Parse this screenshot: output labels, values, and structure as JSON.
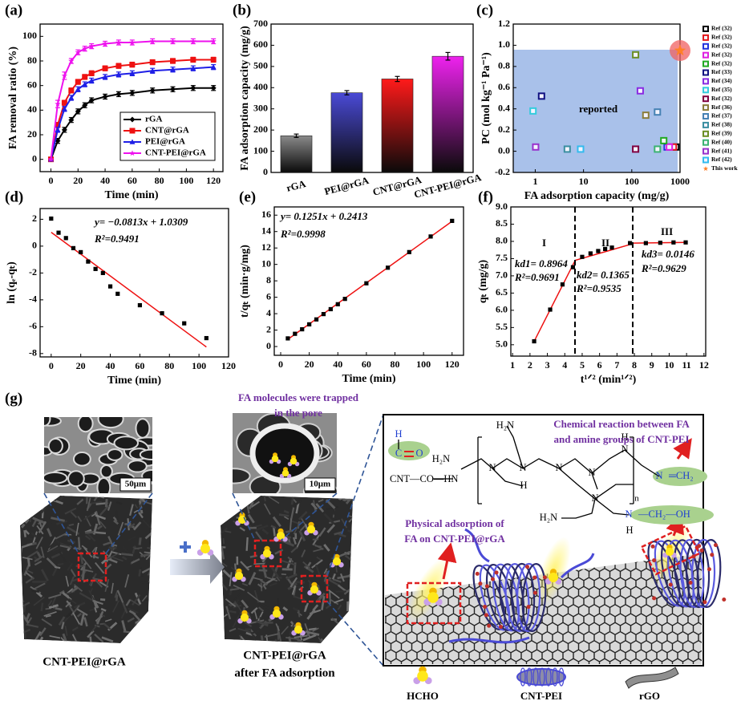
{
  "chart_data": [
    {
      "type": "line",
      "panel_label": "(a)",
      "x_label": "Time (min)",
      "y_label": "FA removal ratio (%)",
      "x": [
        0,
        5,
        10,
        15,
        20,
        25,
        30,
        40,
        50,
        60,
        75,
        90,
        105,
        120
      ],
      "series": [
        {
          "name": "rGA",
          "color": "#000000",
          "marker": "diamond",
          "values": [
            0,
            15,
            24,
            32,
            39,
            44,
            48,
            51,
            53,
            54,
            56,
            57,
            58,
            58
          ],
          "errors": [
            0,
            2,
            2,
            2,
            2,
            2,
            2,
            2,
            2,
            2,
            2,
            2,
            2,
            2
          ]
        },
        {
          "name": "CNT@rGA",
          "color": "#ee1111",
          "marker": "square",
          "values": [
            0,
            28,
            46,
            56,
            63,
            67,
            70,
            74,
            76,
            77,
            79,
            80,
            81,
            81
          ],
          "errors": [
            0,
            2,
            2,
            2,
            2,
            2,
            2,
            2,
            2,
            2,
            2,
            2,
            2,
            2
          ]
        },
        {
          "name": "PEI@rGA",
          "color": "#1f1fe6",
          "marker": "triangle",
          "values": [
            0,
            24,
            41,
            50,
            57,
            61,
            64,
            67,
            69,
            70,
            72,
            73,
            74,
            75
          ],
          "errors": [
            0,
            2,
            2,
            2,
            2,
            2,
            2,
            2,
            2,
            2,
            2,
            2,
            2,
            2
          ]
        },
        {
          "name": "CNT-PEI@rGA",
          "color": "#ee11ee",
          "marker": "star",
          "values": [
            0,
            45,
            68,
            80,
            87,
            90,
            92,
            94,
            95,
            95,
            96,
            96,
            96,
            96
          ],
          "errors": [
            0,
            3,
            3,
            2,
            2,
            2,
            2,
            2,
            2,
            2,
            2,
            2,
            2,
            2
          ]
        }
      ],
      "xlim": [
        -8,
        127
      ],
      "xticks": [
        0,
        20,
        40,
        60,
        80,
        100,
        120
      ],
      "ylim": [
        -10,
        110
      ],
      "yticks": [
        0,
        20,
        40,
        60,
        80,
        100
      ],
      "legend": "lower right"
    },
    {
      "type": "bar",
      "panel_label": "(b)",
      "y_label": "FA adsorption capacity (mg/g)",
      "categories": [
        "rGA",
        "PEI@rGA",
        "CNT@rGA",
        "CNT-PEI@rGA"
      ],
      "values": [
        173,
        376,
        441,
        548
      ],
      "errors": [
        8,
        10,
        12,
        18
      ],
      "colors": [
        "#8a8a8a",
        "#4a4ad6",
        "#ff1a1a",
        "#ee22ee"
      ],
      "ylim": [
        0,
        700
      ],
      "yticks": [
        0,
        100,
        200,
        300,
        400,
        500,
        600,
        700
      ]
    },
    {
      "type": "scatter",
      "panel_label": "(c)",
      "x_label": "FA adsorption capacity (mg/g)",
      "y_label": "PC (mol kg⁻¹ Pa⁻¹)",
      "x_scale": "log",
      "annotations": [
        "reported"
      ],
      "series": [
        {
          "name": "Ref (32)",
          "color": "#000000",
          "marker": "hollow-square",
          "x": [
            820
          ],
          "values": [
            0.04
          ]
        },
        {
          "name": "Ref (32)",
          "color": "#e41a1c",
          "marker": "hollow-square",
          "x": [
            730
          ],
          "values": [
            0.04
          ]
        },
        {
          "name": "Ref (32)",
          "color": "#2233dd",
          "marker": "hollow-square",
          "x": [
            540
          ],
          "values": [
            0.04
          ]
        },
        {
          "name": "Ref (32)",
          "color": "#e020e0",
          "marker": "hollow-square",
          "x": [
            600
          ],
          "values": [
            0.04
          ]
        },
        {
          "name": "Ref (32)",
          "color": "#22aa22",
          "marker": "hollow-square",
          "x": [
            460
          ],
          "values": [
            0.1
          ]
        },
        {
          "name": "Ref (33)",
          "color": "#101080",
          "marker": "hollow-square",
          "x": [
            1.35
          ],
          "values": [
            0.52
          ]
        },
        {
          "name": "Ref (34)",
          "color": "#8a2be2",
          "marker": "hollow-square",
          "x": [
            150
          ],
          "values": [
            0.57
          ]
        },
        {
          "name": "Ref (35)",
          "color": "#33ccdd",
          "marker": "hollow-square",
          "x": [
            0.9
          ],
          "values": [
            0.38
          ]
        },
        {
          "name": "Ref (32)",
          "color": "#800040",
          "marker": "hollow-square",
          "x": [
            120
          ],
          "values": [
            0.02
          ]
        },
        {
          "name": "Ref (36)",
          "color": "#8b7d3a",
          "marker": "hollow-square",
          "x": [
            195
          ],
          "values": [
            0.34
          ]
        },
        {
          "name": "Ref (37)",
          "color": "#4682b4",
          "marker": "hollow-square",
          "x": [
            340
          ],
          "values": [
            0.37
          ]
        },
        {
          "name": "Ref (38)",
          "color": "#3a8fa0",
          "marker": "hollow-square",
          "x": [
            4.6
          ],
          "values": [
            0.02
          ]
        },
        {
          "name": "Ref (39)",
          "color": "#6b8e23",
          "marker": "hollow-square",
          "x": [
            120
          ],
          "values": [
            0.91
          ]
        },
        {
          "name": "Ref (40)",
          "color": "#3cb371",
          "marker": "hollow-square",
          "x": [
            340
          ],
          "values": [
            0.02
          ]
        },
        {
          "name": "Ref (41)",
          "color": "#9932cc",
          "marker": "hollow-square",
          "x": [
            1.02
          ],
          "values": [
            0.04
          ]
        },
        {
          "name": "Ref (42)",
          "color": "#33bbee",
          "marker": "hollow-square",
          "x": [
            8.7
          ],
          "values": [
            0.02
          ]
        },
        {
          "name": "This work",
          "color": "#ff7f27",
          "marker": "star",
          "x": [
            1000
          ],
          "values": [
            0.95
          ]
        }
      ],
      "xlim": [
        0.35,
        1000
      ],
      "xticks": [
        1,
        10,
        100,
        1000
      ],
      "ylim": [
        -0.2,
        1.2
      ],
      "yticks": [
        -0.2,
        {
          "value": 0,
          "label": "0.0"
        },
        0.2,
        0.4,
        0.6,
        0.8,
        {
          "value": 1,
          "label": "1.0"
        },
        1.2
      ],
      "legend": "right"
    },
    {
      "type": "scatter",
      "panel_label": "(d)",
      "x_label": "Time (min)",
      "y_label": "ln (qₑ-qₜ)",
      "annotations": [
        "y= −0.0813x + 1.0309",
        "R²=0.9491"
      ],
      "x": [
        0,
        5,
        10,
        15,
        20,
        25,
        30,
        35,
        40,
        45,
        60,
        75,
        90,
        105
      ],
      "values": [
        2.05,
        1.0,
        0.6,
        -0.15,
        -0.45,
        -1.15,
        -1.7,
        -2.0,
        -3.0,
        -3.55,
        -4.4,
        -5.0,
        -5.75,
        -6.85
      ],
      "fits": [
        {
          "x": [
            0,
            105
          ],
          "y": [
            1.03,
            -7.51
          ]
        }
      ],
      "fit_color": "#ee1111",
      "xlim": [
        -7.5,
        120
      ],
      "xticks": [
        0,
        20,
        40,
        60,
        80,
        100,
        120
      ],
      "ylim": [
        -8.25,
        2.8
      ],
      "yticks": [
        -8,
        -6,
        -4,
        -2,
        0,
        2
      ]
    },
    {
      "type": "scatter",
      "panel_label": "(e)",
      "x_label": "Time (min)",
      "y_label": "t/qₜ (min·g/mg)",
      "annotations": [
        "y= 0.1251x + 0.2413",
        "R²=0.9998"
      ],
      "x": [
        5,
        10,
        15,
        20,
        25,
        30,
        35,
        40,
        45,
        60,
        75,
        90,
        105,
        120
      ],
      "values": [
        0.99,
        1.55,
        2.1,
        2.7,
        3.3,
        3.95,
        4.55,
        5.15,
        5.8,
        7.7,
        9.6,
        11.5,
        13.4,
        15.3
      ],
      "fits": [
        {
          "x": [
            5,
            120
          ],
          "y": [
            0.87,
            15.25
          ]
        }
      ],
      "fit_color": "#ee1111",
      "xlim": [
        -4.5,
        128
      ],
      "xticks": [
        0,
        20,
        40,
        60,
        80,
        100,
        120
      ],
      "ylim": [
        -1.07,
        17
      ],
      "yticks": [
        0,
        2,
        4,
        6,
        8,
        10,
        12,
        14,
        16
      ]
    },
    {
      "type": "scatter",
      "panel_label": "(f)",
      "x_label": "t¹ᐟ² (min¹ᐟ²)",
      "y_label": "qₜ (mg/g)",
      "annotations": [
        "I",
        "II",
        "III",
        "kd1= 0.8964",
        "R²=0.9691",
        "kd2= 0.1365",
        "R²=0.9535",
        "kd3= 0.0146",
        "R²=0.9629"
      ],
      "x": [
        2.24,
        3.16,
        3.87,
        4.47,
        5.0,
        5.48,
        5.92,
        6.32,
        6.71,
        7.75,
        8.66,
        9.49,
        10.25,
        10.95
      ],
      "values": [
        5.1,
        6.02,
        6.75,
        7.25,
        7.55,
        7.65,
        7.72,
        7.78,
        7.82,
        7.95,
        7.95,
        7.96,
        7.97,
        7.97
      ],
      "fits": [
        {
          "x": [
            2.24,
            4.6
          ],
          "y": [
            5.1,
            7.45
          ]
        },
        {
          "x": [
            4.6,
            7.9
          ],
          "y": [
            7.45,
            7.93
          ]
        },
        {
          "x": [
            7.9,
            10.95
          ],
          "y": [
            7.95,
            7.97
          ]
        }
      ],
      "fit_color": "#ee1111",
      "xlim": [
        0.9,
        12.1
      ],
      "xticks": [
        1,
        2,
        3,
        4,
        5,
        6,
        7,
        8,
        9,
        10,
        11,
        12
      ],
      "ylim": [
        4.67,
        9.0
      ],
      "yticks": [
        {
          "value": 5,
          "label": "5.0"
        },
        5.5,
        {
          "value": 6,
          "label": "6.0"
        },
        6.5,
        {
          "value": 7,
          "label": "7.0"
        },
        7.5,
        {
          "value": 8,
          "label": "8.0"
        },
        8.5,
        {
          "value": 9,
          "label": "9.0"
        }
      ]
    }
  ],
  "panel_g": {
    "label": "(g)",
    "trapped_note": [
      "FA molecules were trapped",
      "in the pore"
    ],
    "scale_bars": [
      "50μm",
      "10μm"
    ],
    "captions": [
      [
        "CNT-PEI@rGA"
      ],
      [
        "CNT-PEI@rGA",
        "after FA adsorption"
      ]
    ],
    "reaction_note": [
      "Chemical reaction between FA",
      "and amine groups of CNT-PEI"
    ],
    "physical_note": [
      "Physical adsorption of",
      "FA on CNT-PEI@rGA"
    ],
    "chem_labels": [
      "H",
      "C",
      "O",
      "H₂N",
      "CNT—CO—HN",
      "H₂N",
      "N",
      "N",
      "H",
      "N",
      "N",
      "H",
      "N",
      "N",
      "n",
      "N",
      "═CH₂",
      "H₂N",
      "N",
      "H",
      "—CH₂—OH"
    ],
    "legend": [
      "HCHO",
      "CNT-PEI",
      "rGO"
    ]
  }
}
